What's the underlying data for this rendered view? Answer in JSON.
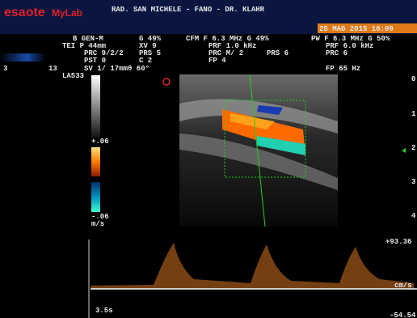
{
  "header": {
    "logo": "esaote",
    "product": "MyLab",
    "site": "RAD. SAN MICHELE - FANO - DR. KLAHR",
    "datetime": "25 MAG 2015 16:09"
  },
  "params": {
    "b_mode": "B GEN-M",
    "b_gain": "G 49%",
    "probe": "TEI P 44mm",
    "xv": "XV 9",
    "prc": "PRC 9/2/2",
    "prs": "PRS 5",
    "pst": "PST 0",
    "c": "C 2",
    "sv": "SV 1/ 17mmθ 60°",
    "cfm_freq": "CFM F  6.3 MHz G 49%",
    "cfm_prf": "PRF 1.0 kHz",
    "cfm_prc": "PRC M/ 2",
    "cfm_prs": "PRS  6",
    "cfm_fp": "FP  4",
    "pw_freq": "PW F  6.3 MHz G 50%",
    "pw_prf": "PRF 6.0 kHz",
    "pw_prc": "PRC 6",
    "pw_fp": "FP  65  Hz"
  },
  "side": {
    "left_num": "3",
    "right_num": "13",
    "probe_id": "LA533"
  },
  "color_bar": {
    "max": "+.06",
    "min": "-.06",
    "unit": "m/s"
  },
  "depth_scale": [
    "0",
    "1",
    "2",
    "3",
    "4"
  ],
  "doppler": {
    "max": "+93.36",
    "unit": "cm/s",
    "min": "-54.54",
    "sweep": "3.5s"
  }
}
